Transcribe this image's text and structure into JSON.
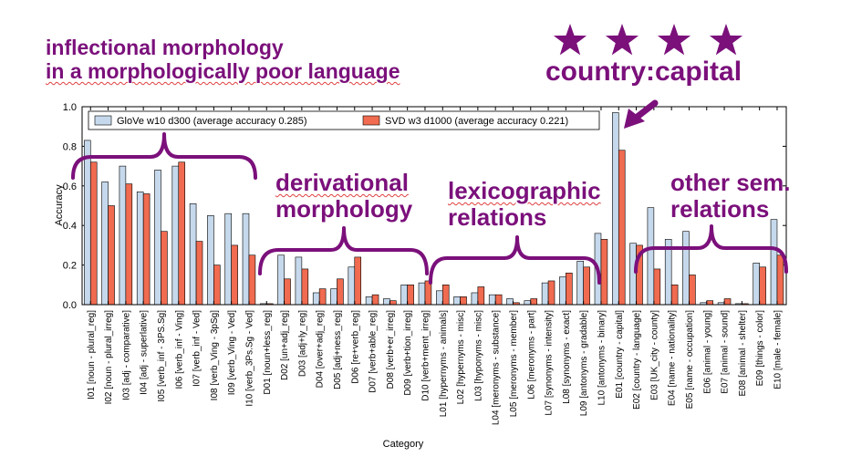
{
  "annotations": {
    "inflectional": [
      "inflectional morphology",
      "in a morphologically poor language"
    ],
    "derivational": [
      "derivational",
      "morphology"
    ],
    "lexicographic": [
      "lexicographic",
      "relations"
    ],
    "other": [
      "other sem.",
      "relations"
    ],
    "country_capital": "country:capital",
    "stars": 4,
    "color": "#7b107b"
  },
  "chart_data": {
    "type": "bar",
    "xlabel": "Category",
    "ylabel": "Accuracy",
    "ylim": [
      0,
      1.0
    ],
    "yticks": [
      "0.0",
      "0.2",
      "0.4",
      "0.6",
      "0.8",
      "1.0"
    ],
    "legend_position": "top-left",
    "categories": [
      "I01 [noun - plural_reg]",
      "I02 [noun - plural_irreg]",
      "I03 [adj - comparative]",
      "I04 [adj - superlative]",
      "I05 [verb_inf - 3PS.Sg]",
      "I06 [verb_inf - Ving]",
      "I07 [verb_inf - Ved]",
      "I08 [verb_Ving - 3pSg]",
      "I09 [verb_Ving - Ved]",
      "I10 [verb_3Ps.Sg - Ved]",
      "D01 [noun+less_reg]",
      "D02 [un+adj_reg]",
      "D03 [adj+ly_reg]",
      "D04 [over+adj_reg]",
      "D05 [adj+ness_reg]",
      "D06 [re+verb_reg]",
      "D07 [verb+able_reg]",
      "D08 [verb+er_irreg]",
      "D09 [verb+tion_irreg]",
      "D10 [verb+ment_irreg]",
      "L01 [hypernyms - animals]",
      "L02 [hypernyms - misc]",
      "L03 [hyponyms - misc]",
      "L04 [meronyms - substance]",
      "L05 [meronyms - member]",
      "L06 [meronyms - part]",
      "L07 [synonyms - intensity]",
      "L08 [synonyms - exact]",
      "L09 [antonyms - gradable]",
      "L10 [antonyms - binary]",
      "E01 [country - capital]",
      "E02 [country - language]",
      "E03 [UK_city - county]",
      "E04 [name - nationality]",
      "E05 [name - occupation]",
      "E06 [animal - young]",
      "E07 [animal - sound]",
      "E08 [animal - shelter]",
      "E09 [things - color]",
      "E10 [male - female]"
    ],
    "series": [
      {
        "name": "GloVe w10 d300 (average accuracy 0.285)",
        "color": "#c6d9ec",
        "values": [
          0.83,
          0.62,
          0.7,
          0.57,
          0.68,
          0.7,
          0.51,
          0.45,
          0.46,
          0.46,
          0.005,
          0.25,
          0.24,
          0.06,
          0.08,
          0.19,
          0.04,
          0.03,
          0.1,
          0.11,
          0.07,
          0.04,
          0.06,
          0.05,
          0.03,
          0.02,
          0.11,
          0.14,
          0.22,
          0.36,
          0.97,
          0.31,
          0.49,
          0.33,
          0.37,
          0.01,
          0.01,
          0.005,
          0.21,
          0.43
        ]
      },
      {
        "name": "SVD w3 d1000 (average accuracy 0.221)",
        "color": "#f06b50",
        "values": [
          0.72,
          0.5,
          0.61,
          0.56,
          0.37,
          0.72,
          0.32,
          0.2,
          0.3,
          0.25,
          0.005,
          0.13,
          0.18,
          0.08,
          0.13,
          0.24,
          0.05,
          0.02,
          0.1,
          0.12,
          0.1,
          0.04,
          0.09,
          0.05,
          0.01,
          0.03,
          0.12,
          0.16,
          0.19,
          0.33,
          0.78,
          0.3,
          0.18,
          0.1,
          0.15,
          0.02,
          0.03,
          0.005,
          0.19,
          0.25
        ]
      }
    ]
  }
}
